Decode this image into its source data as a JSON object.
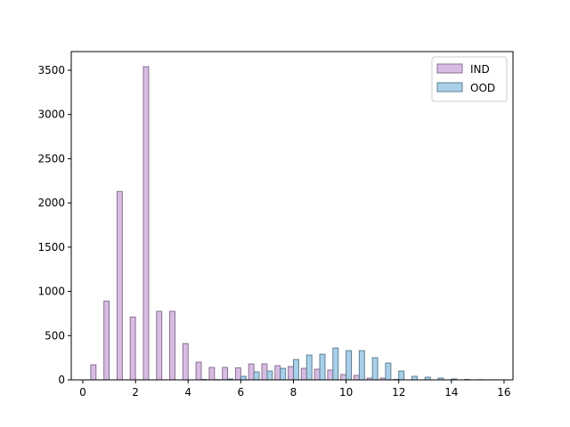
{
  "chart_data": {
    "type": "histogram",
    "bins": [
      0.25,
      0.75,
      1.25,
      1.75,
      2.25,
      2.75,
      3.25,
      3.75,
      4.25,
      4.75,
      5.25,
      5.75,
      6.25,
      6.75,
      7.25,
      7.75,
      8.25,
      8.75,
      9.25,
      9.75,
      10.25,
      10.75,
      11.25,
      11.75,
      12.25,
      12.75,
      13.25,
      13.75,
      14.25,
      14.75,
      15.25,
      15.75
    ],
    "series": [
      {
        "name": "IND",
        "color": "#d8bde2",
        "edgecolor": "#8a6e94",
        "values": [
          170,
          890,
          2130,
          710,
          3540,
          775,
          775,
          410,
          200,
          140,
          140,
          135,
          180,
          180,
          160,
          150,
          130,
          120,
          110,
          60,
          50,
          20,
          20,
          5,
          0,
          0,
          0,
          0,
          0,
          0,
          0
        ]
      },
      {
        "name": "OOD",
        "color": "#a9d0e8",
        "edgecolor": "#5f7f95",
        "values": [
          0,
          0,
          0,
          0,
          0,
          0,
          0,
          0,
          5,
          3,
          10,
          40,
          90,
          100,
          130,
          230,
          280,
          290,
          360,
          330,
          330,
          250,
          190,
          100,
          40,
          30,
          20,
          10,
          5,
          2,
          1
        ]
      }
    ],
    "xlim": [
      -0.44,
      16.34
    ],
    "ylim": [
      0,
      3711
    ],
    "xticks": [
      0,
      2,
      4,
      6,
      8,
      10,
      12,
      14,
      16
    ],
    "yticks": [
      0,
      500,
      1000,
      1500,
      2000,
      2500,
      3000,
      3500
    ],
    "legend": "upper right"
  }
}
